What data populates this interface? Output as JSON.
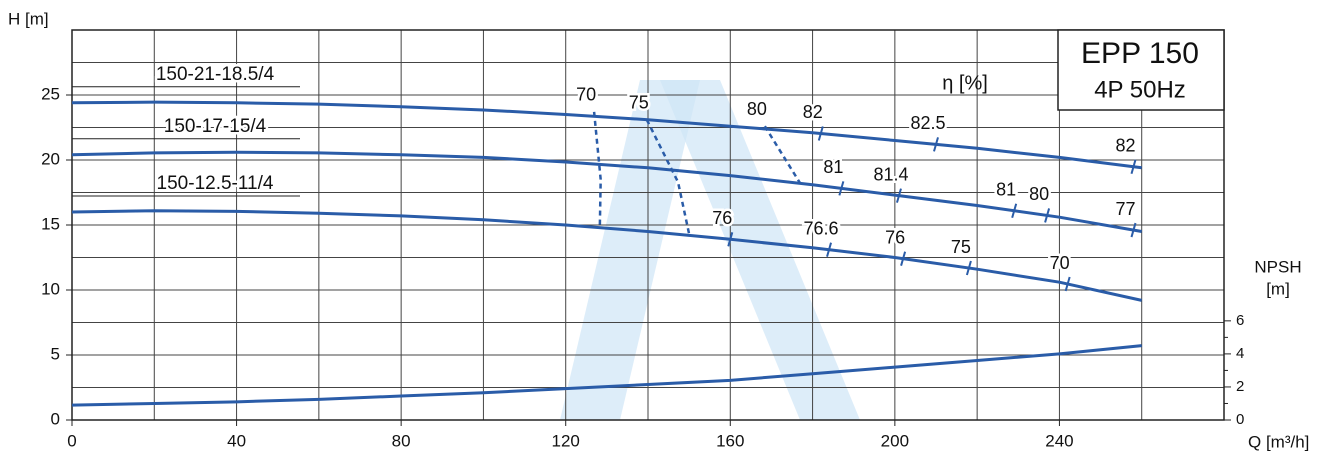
{
  "chart_data": {
    "type": "line",
    "box_title": "EPP 150",
    "box_subtitle": "4P 50Hz",
    "y_label": "H [m]",
    "x_label": "Q [m³/h]",
    "y2_label": "NPSH",
    "y2_unit": "[m]",
    "eta_label": "η [%]",
    "x": [
      0,
      20,
      40,
      60,
      80,
      100,
      120,
      140,
      160,
      180,
      200,
      220,
      240,
      260
    ],
    "xlim": [
      0,
      280
    ],
    "xticks": [
      0,
      40,
      80,
      120,
      160,
      200,
      240
    ],
    "xminor": [
      20,
      60,
      100,
      140,
      180,
      220,
      260
    ],
    "ylim": [
      0,
      30
    ],
    "yticks": [
      0,
      5,
      10,
      15,
      20,
      25
    ],
    "yminor": [
      2.5,
      7.5,
      12.5,
      17.5,
      22.5,
      27.5
    ],
    "y2lim": [
      0,
      23.6
    ],
    "y2ticks": [
      0,
      2,
      4,
      6
    ],
    "y2minor": [
      1,
      3,
      5
    ],
    "grid": true,
    "series": [
      {
        "name": "150-21-18.5/4",
        "color": "#2a5ca8",
        "values": [
          24.4,
          24.45,
          24.4,
          24.3,
          24.1,
          23.85,
          23.5,
          23.1,
          22.6,
          22.1,
          21.5,
          20.9,
          20.2,
          19.4
        ],
        "efficiency": [
          {
            "x": 182,
            "eta": 82
          },
          {
            "x": 210,
            "eta": 82.5
          },
          {
            "x": 258,
            "eta": 82
          }
        ]
      },
      {
        "name": "150-17-15/4",
        "color": "#2a5ca8",
        "values": [
          20.4,
          20.55,
          20.6,
          20.55,
          20.4,
          20.2,
          19.85,
          19.4,
          18.8,
          18.1,
          17.3,
          16.5,
          15.6,
          14.5
        ],
        "efficiency": [
          {
            "x": 187,
            "eta": 81
          },
          {
            "x": 201,
            "eta": 81.4
          },
          {
            "x": 229,
            "eta": 81
          },
          {
            "x": 237,
            "eta": 80
          },
          {
            "x": 258,
            "eta": 77
          }
        ]
      },
      {
        "name": "150-12.5-11/4",
        "color": "#2a5ca8",
        "values": [
          16.0,
          16.1,
          16.05,
          15.9,
          15.7,
          15.4,
          15.0,
          14.5,
          13.9,
          13.25,
          12.5,
          11.6,
          10.6,
          9.2
        ],
        "efficiency": [
          {
            "x": 160,
            "eta": 76
          },
          {
            "x": 184,
            "eta": 76.6
          },
          {
            "x": 202,
            "eta": 76
          },
          {
            "x": 218,
            "eta": 75
          },
          {
            "x": 242,
            "eta": 70
          }
        ]
      },
      {
        "name": "NPSH",
        "color": "#2a5ca8",
        "axis": "y2",
        "values": [
          0.9,
          1.0,
          1.1,
          1.25,
          1.45,
          1.65,
          1.9,
          2.15,
          2.4,
          2.8,
          3.2,
          3.6,
          4.0,
          4.5
        ]
      }
    ],
    "iso_efficiency": [
      {
        "eta": 70,
        "x": [
          126.9,
          128.5,
          128.3
        ],
        "y": [
          23.7,
          18.5,
          15.0
        ]
      },
      {
        "eta": 75,
        "x": [
          139.7,
          147.3,
          150.0
        ],
        "y": [
          23.1,
          18.3,
          14.3
        ]
      },
      {
        "eta": 80,
        "x": [
          168.4,
          177.0
        ],
        "y": [
          22.6,
          18.2
        ]
      }
    ]
  }
}
